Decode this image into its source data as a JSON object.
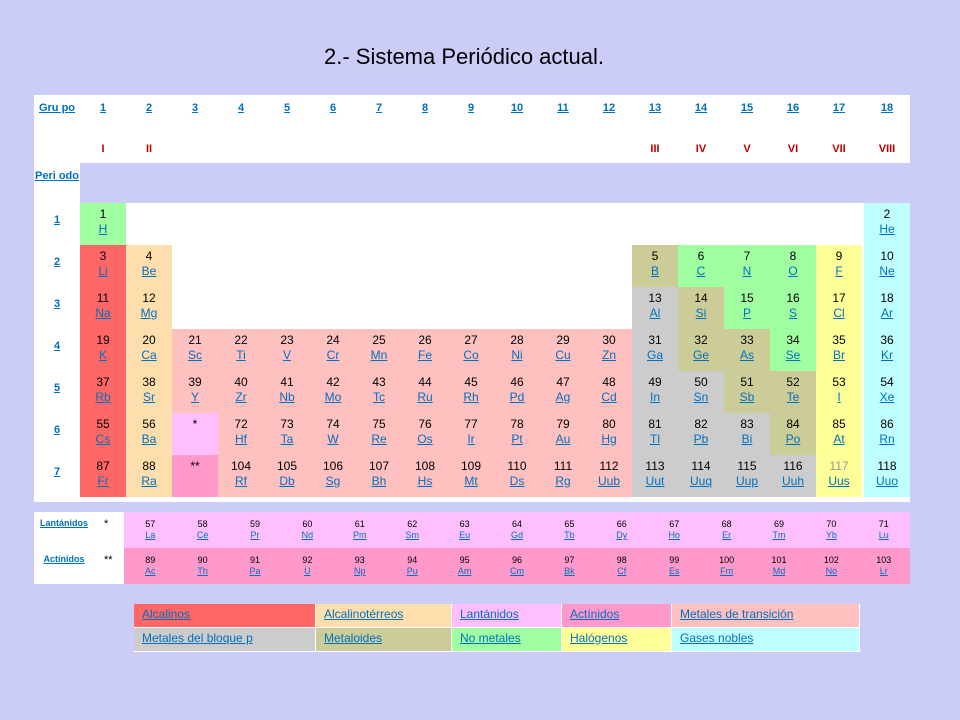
{
  "title": "2.- Sistema Periódico actual.",
  "headers": {
    "grupo": "Gru po",
    "periodo": "Peri odo",
    "groups": [
      "1",
      "2",
      "3",
      "4",
      "5",
      "6",
      "7",
      "8",
      "9",
      "10",
      "11",
      "12",
      "13",
      "14",
      "15",
      "16",
      "17",
      "18"
    ],
    "roman": {
      "1": "I",
      "2": "II",
      "13": "III",
      "14": "IV",
      "15": "V",
      "16": "VI",
      "17": "VII",
      "18": "VIII"
    },
    "periods": [
      "1",
      "2",
      "3",
      "4",
      "5",
      "6",
      "7"
    ]
  },
  "colors": {
    "alkali": "#ff6666",
    "alkaline": "#ffdead",
    "lanthanide": "#ffbfff",
    "actinide": "#ff99cc",
    "transition": "#ffc0c0",
    "post": "#cccccc",
    "metalloid": "#cccc99",
    "nonmetal": "#a0ffa0",
    "halogen": "#ffff99",
    "noble": "#c0ffff"
  },
  "elements": [
    {
      "n": "1",
      "s": "H",
      "g": 1,
      "p": 1,
      "c": "nonmetal"
    },
    {
      "n": "2",
      "s": "He",
      "g": 18,
      "p": 1,
      "c": "noble"
    },
    {
      "n": "3",
      "s": "Li",
      "g": 1,
      "p": 2,
      "c": "alkali"
    },
    {
      "n": "4",
      "s": "Be",
      "g": 2,
      "p": 2,
      "c": "alkaline"
    },
    {
      "n": "5",
      "s": "B",
      "g": 13,
      "p": 2,
      "c": "metalloid"
    },
    {
      "n": "6",
      "s": "C",
      "g": 14,
      "p": 2,
      "c": "nonmetal"
    },
    {
      "n": "7",
      "s": "N",
      "g": 15,
      "p": 2,
      "c": "nonmetal"
    },
    {
      "n": "8",
      "s": "O",
      "g": 16,
      "p": 2,
      "c": "nonmetal"
    },
    {
      "n": "9",
      "s": "F",
      "g": 17,
      "p": 2,
      "c": "halogen"
    },
    {
      "n": "10",
      "s": "Ne",
      "g": 18,
      "p": 2,
      "c": "noble"
    },
    {
      "n": "11",
      "s": "Na",
      "g": 1,
      "p": 3,
      "c": "alkali"
    },
    {
      "n": "12",
      "s": "Mg",
      "g": 2,
      "p": 3,
      "c": "alkaline"
    },
    {
      "n": "13",
      "s": "Al",
      "g": 13,
      "p": 3,
      "c": "post"
    },
    {
      "n": "14",
      "s": "Si",
      "g": 14,
      "p": 3,
      "c": "metalloid"
    },
    {
      "n": "15",
      "s": "P",
      "g": 15,
      "p": 3,
      "c": "nonmetal"
    },
    {
      "n": "16",
      "s": "S",
      "g": 16,
      "p": 3,
      "c": "nonmetal"
    },
    {
      "n": "17",
      "s": "Cl",
      "g": 17,
      "p": 3,
      "c": "halogen"
    },
    {
      "n": "18",
      "s": "Ar",
      "g": 18,
      "p": 3,
      "c": "noble"
    },
    {
      "n": "19",
      "s": "K",
      "g": 1,
      "p": 4,
      "c": "alkali"
    },
    {
      "n": "20",
      "s": "Ca",
      "g": 2,
      "p": 4,
      "c": "alkaline"
    },
    {
      "n": "21",
      "s": "Sc",
      "g": 3,
      "p": 4,
      "c": "transition"
    },
    {
      "n": "22",
      "s": "Ti",
      "g": 4,
      "p": 4,
      "c": "transition"
    },
    {
      "n": "23",
      "s": "V",
      "g": 5,
      "p": 4,
      "c": "transition"
    },
    {
      "n": "24",
      "s": "Cr",
      "g": 6,
      "p": 4,
      "c": "transition"
    },
    {
      "n": "25",
      "s": "Mn",
      "g": 7,
      "p": 4,
      "c": "transition"
    },
    {
      "n": "26",
      "s": "Fe",
      "g": 8,
      "p": 4,
      "c": "transition"
    },
    {
      "n": "27",
      "s": "Co",
      "g": 9,
      "p": 4,
      "c": "transition"
    },
    {
      "n": "28",
      "s": "Ni",
      "g": 10,
      "p": 4,
      "c": "transition"
    },
    {
      "n": "29",
      "s": "Cu",
      "g": 11,
      "p": 4,
      "c": "transition"
    },
    {
      "n": "30",
      "s": "Zn",
      "g": 12,
      "p": 4,
      "c": "transition"
    },
    {
      "n": "31",
      "s": "Ga",
      "g": 13,
      "p": 4,
      "c": "post"
    },
    {
      "n": "32",
      "s": "Ge",
      "g": 14,
      "p": 4,
      "c": "metalloid"
    },
    {
      "n": "33",
      "s": "As",
      "g": 15,
      "p": 4,
      "c": "metalloid"
    },
    {
      "n": "34",
      "s": "Se",
      "g": 16,
      "p": 4,
      "c": "nonmetal"
    },
    {
      "n": "35",
      "s": "Br",
      "g": 17,
      "p": 4,
      "c": "halogen"
    },
    {
      "n": "36",
      "s": "Kr",
      "g": 18,
      "p": 4,
      "c": "noble"
    },
    {
      "n": "37",
      "s": "Rb",
      "g": 1,
      "p": 5,
      "c": "alkali"
    },
    {
      "n": "38",
      "s": "Sr",
      "g": 2,
      "p": 5,
      "c": "alkaline"
    },
    {
      "n": "39",
      "s": "Y",
      "g": 3,
      "p": 5,
      "c": "transition"
    },
    {
      "n": "40",
      "s": "Zr",
      "g": 4,
      "p": 5,
      "c": "transition"
    },
    {
      "n": "41",
      "s": "Nb",
      "g": 5,
      "p": 5,
      "c": "transition"
    },
    {
      "n": "42",
      "s": "Mo",
      "g": 6,
      "p": 5,
      "c": "transition"
    },
    {
      "n": "43",
      "s": "Tc",
      "g": 7,
      "p": 5,
      "c": "transition"
    },
    {
      "n": "44",
      "s": "Ru",
      "g": 8,
      "p": 5,
      "c": "transition"
    },
    {
      "n": "45",
      "s": "Rh",
      "g": 9,
      "p": 5,
      "c": "transition"
    },
    {
      "n": "46",
      "s": "Pd",
      "g": 10,
      "p": 5,
      "c": "transition"
    },
    {
      "n": "47",
      "s": "Ag",
      "g": 11,
      "p": 5,
      "c": "transition"
    },
    {
      "n": "48",
      "s": "Cd",
      "g": 12,
      "p": 5,
      "c": "transition"
    },
    {
      "n": "49",
      "s": "In",
      "g": 13,
      "p": 5,
      "c": "post"
    },
    {
      "n": "50",
      "s": "Sn",
      "g": 14,
      "p": 5,
      "c": "post"
    },
    {
      "n": "51",
      "s": "Sb",
      "g": 15,
      "p": 5,
      "c": "metalloid"
    },
    {
      "n": "52",
      "s": "Te",
      "g": 16,
      "p": 5,
      "c": "metalloid"
    },
    {
      "n": "53",
      "s": "I",
      "g": 17,
      "p": 5,
      "c": "halogen"
    },
    {
      "n": "54",
      "s": "Xe",
      "g": 18,
      "p": 5,
      "c": "noble"
    },
    {
      "n": "55",
      "s": "Cs",
      "g": 1,
      "p": 6,
      "c": "alkali"
    },
    {
      "n": "56",
      "s": "Ba",
      "g": 2,
      "p": 6,
      "c": "alkaline"
    },
    {
      "n": "*",
      "s": "",
      "g": 3,
      "p": 6,
      "c": "lanthanide"
    },
    {
      "n": "72",
      "s": "Hf",
      "g": 4,
      "p": 6,
      "c": "transition"
    },
    {
      "n": "73",
      "s": "Ta",
      "g": 5,
      "p": 6,
      "c": "transition"
    },
    {
      "n": "74",
      "s": "W",
      "g": 6,
      "p": 6,
      "c": "transition"
    },
    {
      "n": "75",
      "s": "Re",
      "g": 7,
      "p": 6,
      "c": "transition"
    },
    {
      "n": "76",
      "s": "Os",
      "g": 8,
      "p": 6,
      "c": "transition"
    },
    {
      "n": "77",
      "s": "Ir",
      "g": 9,
      "p": 6,
      "c": "transition"
    },
    {
      "n": "78",
      "s": "Pt",
      "g": 10,
      "p": 6,
      "c": "transition"
    },
    {
      "n": "79",
      "s": "Au",
      "g": 11,
      "p": 6,
      "c": "transition"
    },
    {
      "n": "80",
      "s": "Hg",
      "g": 12,
      "p": 6,
      "c": "transition"
    },
    {
      "n": "81",
      "s": "Tl",
      "g": 13,
      "p": 6,
      "c": "post"
    },
    {
      "n": "82",
      "s": "Pb",
      "g": 14,
      "p": 6,
      "c": "post"
    },
    {
      "n": "83",
      "s": "Bi",
      "g": 15,
      "p": 6,
      "c": "post"
    },
    {
      "n": "84",
      "s": "Po",
      "g": 16,
      "p": 6,
      "c": "metalloid"
    },
    {
      "n": "85",
      "s": "At",
      "g": 17,
      "p": 6,
      "c": "halogen"
    },
    {
      "n": "86",
      "s": "Rn",
      "g": 18,
      "p": 6,
      "c": "noble"
    },
    {
      "n": "87",
      "s": "Fr",
      "g": 1,
      "p": 7,
      "c": "alkali"
    },
    {
      "n": "88",
      "s": "Ra",
      "g": 2,
      "p": 7,
      "c": "alkaline"
    },
    {
      "n": "**",
      "s": "",
      "g": 3,
      "p": 7,
      "c": "actinide"
    },
    {
      "n": "104",
      "s": "Rf",
      "g": 4,
      "p": 7,
      "c": "transition"
    },
    {
      "n": "105",
      "s": "Db",
      "g": 5,
      "p": 7,
      "c": "transition"
    },
    {
      "n": "106",
      "s": "Sg",
      "g": 6,
      "p": 7,
      "c": "transition"
    },
    {
      "n": "107",
      "s": "Bh",
      "g": 7,
      "p": 7,
      "c": "transition"
    },
    {
      "n": "108",
      "s": "Hs",
      "g": 8,
      "p": 7,
      "c": "transition"
    },
    {
      "n": "109",
      "s": "Mt",
      "g": 9,
      "p": 7,
      "c": "transition"
    },
    {
      "n": "110",
      "s": "Ds",
      "g": 10,
      "p": 7,
      "c": "transition"
    },
    {
      "n": "111",
      "s": "Rg",
      "g": 11,
      "p": 7,
      "c": "transition"
    },
    {
      "n": "112",
      "s": "Uub",
      "g": 12,
      "p": 7,
      "c": "transition"
    },
    {
      "n": "113",
      "s": "Uut",
      "g": 13,
      "p": 7,
      "c": "post"
    },
    {
      "n": "114",
      "s": "Uuq",
      "g": 14,
      "p": 7,
      "c": "post"
    },
    {
      "n": "115",
      "s": "Uup",
      "g": 15,
      "p": 7,
      "c": "post"
    },
    {
      "n": "116",
      "s": "Uuh",
      "g": 16,
      "p": 7,
      "c": "post"
    },
    {
      "n": "117",
      "s": "Uus",
      "g": 17,
      "p": 7,
      "c": "halogen"
    },
    {
      "n": "118",
      "s": "Uuo",
      "g": 18,
      "p": 7,
      "c": "noble"
    }
  ],
  "series": {
    "lanthanides": {
      "label": "Lantánidos",
      "marker": "*",
      "items": [
        {
          "n": "57",
          "s": "La"
        },
        {
          "n": "58",
          "s": "Ce"
        },
        {
          "n": "59",
          "s": "Pr"
        },
        {
          "n": "60",
          "s": "Nd"
        },
        {
          "n": "61",
          "s": "Pm"
        },
        {
          "n": "62",
          "s": "Sm"
        },
        {
          "n": "63",
          "s": "Eu"
        },
        {
          "n": "64",
          "s": "Gd"
        },
        {
          "n": "65",
          "s": "Tb"
        },
        {
          "n": "66",
          "s": "Dy"
        },
        {
          "n": "67",
          "s": "Ho"
        },
        {
          "n": "68",
          "s": "Er"
        },
        {
          "n": "69",
          "s": "Tm"
        },
        {
          "n": "70",
          "s": "Yb"
        },
        {
          "n": "71",
          "s": "Lu"
        }
      ]
    },
    "actinides": {
      "label": "Actínidos",
      "marker": "**",
      "items": [
        {
          "n": "89",
          "s": "Ac"
        },
        {
          "n": "90",
          "s": "Th"
        },
        {
          "n": "91",
          "s": "Pa"
        },
        {
          "n": "92",
          "s": "U"
        },
        {
          "n": "93",
          "s": "Np"
        },
        {
          "n": "94",
          "s": "Pu"
        },
        {
          "n": "95",
          "s": "Am"
        },
        {
          "n": "96",
          "s": "Cm"
        },
        {
          "n": "97",
          "s": "Bk"
        },
        {
          "n": "98",
          "s": "Cf"
        },
        {
          "n": "99",
          "s": "Es"
        },
        {
          "n": "100",
          "s": "Fm"
        },
        {
          "n": "101",
          "s": "Md"
        },
        {
          "n": "102",
          "s": "No"
        },
        {
          "n": "103",
          "s": "Lr"
        }
      ]
    }
  },
  "legend": [
    {
      "label": "Alcalinos",
      "c": "alkali"
    },
    {
      "label": "Alcalinotérreos",
      "c": "alkaline"
    },
    {
      "label": "Lantánidos",
      "c": "lanthanide"
    },
    {
      "label": "Actínidos",
      "c": "actinide"
    },
    {
      "label": "Metales de transición",
      "c": "transition"
    },
    {
      "label": "Metales del bloque p",
      "c": "post"
    },
    {
      "label": "Metaloides",
      "c": "metalloid"
    },
    {
      "label": "No metales",
      "c": "nonmetal"
    },
    {
      "label": "Halógenos",
      "c": "halogen"
    },
    {
      "label": "Gases nobles",
      "c": "noble"
    }
  ]
}
